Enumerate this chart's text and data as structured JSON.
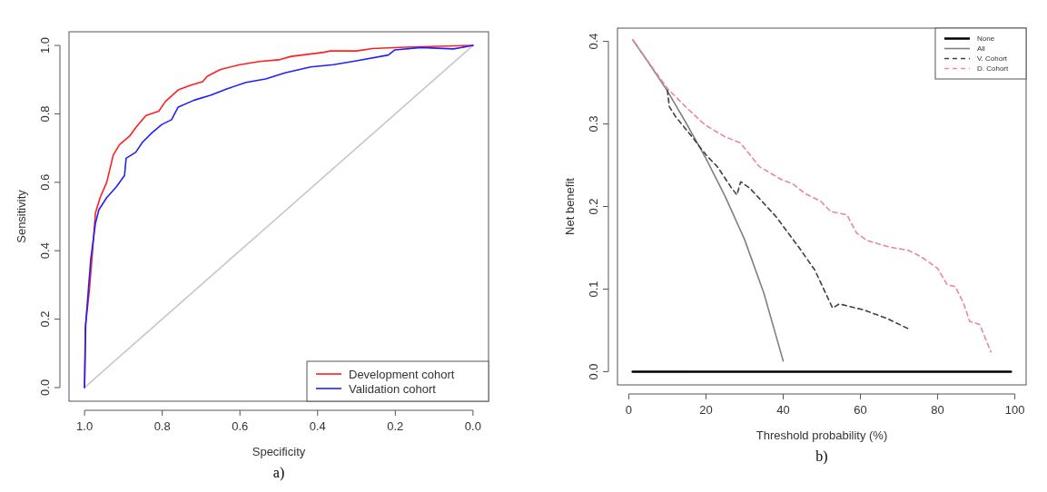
{
  "chart_data": [
    {
      "type": "line",
      "xlabel": "Specificity",
      "ylabel": "Sensitivity",
      "annotations": [
        "a)"
      ],
      "xlim": [
        1.04,
        -0.04
      ],
      "ylim": [
        -0.04,
        1.04
      ],
      "xticks": [
        {
          "value": 1,
          "label": "1.0"
        },
        {
          "value": 0.8,
          "label": "0.8"
        },
        {
          "value": 0.6,
          "label": "0.6"
        },
        {
          "value": 0.4,
          "label": "0.4"
        },
        {
          "value": 0.2,
          "label": "0.2"
        },
        {
          "value": 0,
          "label": "0.0"
        }
      ],
      "yticks": [
        {
          "value": 0,
          "label": "0.0"
        },
        {
          "value": 0.2,
          "label": "0.2"
        },
        {
          "value": 0.4,
          "label": "0.4"
        },
        {
          "value": 0.6,
          "label": "0.6"
        },
        {
          "value": 0.8,
          "label": "0.8"
        },
        {
          "value": 1,
          "label": "1.0"
        }
      ],
      "legend": "bottom right",
      "grid": false,
      "series": [
        {
          "color": "#c8c8c8",
          "x": [
            1,
            0
          ],
          "values": [
            0,
            1
          ]
        },
        {
          "name": "Development cohort",
          "color": "#ff2020",
          "x": [
            1,
            0.998,
            0.988,
            0.98,
            0.972,
            0.96,
            0.943,
            0.926,
            0.91,
            0.884,
            0.868,
            0.842,
            0.809,
            0.792,
            0.759,
            0.726,
            0.696,
            0.684,
            0.65,
            0.6,
            0.55,
            0.5,
            0.468,
            0.384,
            0.368,
            0.3,
            0.259,
            0.176,
            0.05,
            0
          ],
          "values": [
            0,
            0.176,
            0.28,
            0.39,
            0.51,
            0.555,
            0.6,
            0.68,
            0.71,
            0.735,
            0.76,
            0.795,
            0.808,
            0.836,
            0.87,
            0.884,
            0.894,
            0.91,
            0.93,
            0.944,
            0.953,
            0.958,
            0.968,
            0.98,
            0.984,
            0.984,
            0.991,
            0.995,
            0.999,
            1
          ]
        },
        {
          "name": "Validation cohort",
          "color": "#2020ff",
          "x": [
            1,
            0.997,
            0.984,
            0.972,
            0.963,
            0.943,
            0.918,
            0.897,
            0.893,
            0.868,
            0.851,
            0.826,
            0.801,
            0.776,
            0.759,
            0.718,
            0.676,
            0.634,
            0.584,
            0.534,
            0.484,
            0.418,
            0.359,
            0.3,
            0.218,
            0.201,
            0.134,
            0.05,
            0
          ],
          "values": [
            0,
            0.186,
            0.375,
            0.48,
            0.52,
            0.555,
            0.587,
            0.62,
            0.67,
            0.688,
            0.717,
            0.745,
            0.769,
            0.783,
            0.82,
            0.84,
            0.854,
            0.873,
            0.892,
            0.902,
            0.92,
            0.937,
            0.944,
            0.955,
            0.972,
            0.987,
            0.994,
            0.99,
            1
          ]
        }
      ]
    },
    {
      "type": "line",
      "xlabel": "Threshold probability (%)",
      "ylabel": "Net benefit",
      "annotations": [
        "b)"
      ],
      "xlim": [
        -2.92,
        102.92
      ],
      "ylim": [
        -0.016,
        0.416
      ],
      "xticks": [
        0,
        20,
        40,
        60,
        80,
        100
      ],
      "yticks": [
        {
          "value": 0,
          "label": "0.0"
        },
        {
          "value": 0.1,
          "label": "0.1"
        },
        {
          "value": 0.2,
          "label": "0.2"
        },
        {
          "value": 0.3,
          "label": "0.3"
        },
        {
          "value": 0.4,
          "label": "0.4"
        }
      ],
      "legend": "top right",
      "grid": false,
      "series": [
        {
          "name": "None",
          "color": "#000000",
          "line_style": "solid",
          "x": [
            1,
            99
          ],
          "values": [
            0,
            0
          ]
        },
        {
          "name": "All",
          "color": "#808080",
          "line_style": "solid",
          "x": [
            1,
            5,
            10,
            15,
            20,
            25,
            30,
            35,
            40
          ],
          "values": [
            0.402,
            0.375,
            0.34,
            0.3,
            0.258,
            0.212,
            0.16,
            0.095,
            0.013
          ]
        },
        {
          "name": "V. Cohort",
          "color": "#404040",
          "line_style": "dashed",
          "x": [
            10,
            10.5,
            12.1,
            16.3,
            20.1,
            23,
            26.4,
            28,
            29,
            31.4,
            38.1,
            44,
            48.2,
            52.8,
            54.5,
            60.7,
            66.6,
            72.4
          ],
          "values": [
            0.341,
            0.321,
            0.309,
            0.285,
            0.262,
            0.248,
            0.224,
            0.214,
            0.23,
            0.222,
            0.188,
            0.151,
            0.123,
            0.077,
            0.082,
            0.075,
            0.065,
            0.052
          ]
        },
        {
          "name": "D. Cohort",
          "color": "#e58a9c",
          "line_style": "dashed",
          "x": [
            1,
            10,
            14.7,
            19.7,
            24.7,
            28.9,
            33.9,
            39.8,
            42.3,
            45.6,
            49.8,
            52.3,
            56.5,
            59,
            61.6,
            67.4,
            72.4,
            75.8,
            80,
            82.5,
            84.6,
            86.7,
            88.3,
            90.9,
            93.8
          ],
          "values": [
            0.402,
            0.343,
            0.321,
            0.299,
            0.285,
            0.277,
            0.248,
            0.232,
            0.228,
            0.216,
            0.206,
            0.194,
            0.19,
            0.168,
            0.159,
            0.151,
            0.147,
            0.139,
            0.125,
            0.105,
            0.103,
            0.083,
            0.061,
            0.057,
            0.024
          ]
        }
      ]
    }
  ]
}
